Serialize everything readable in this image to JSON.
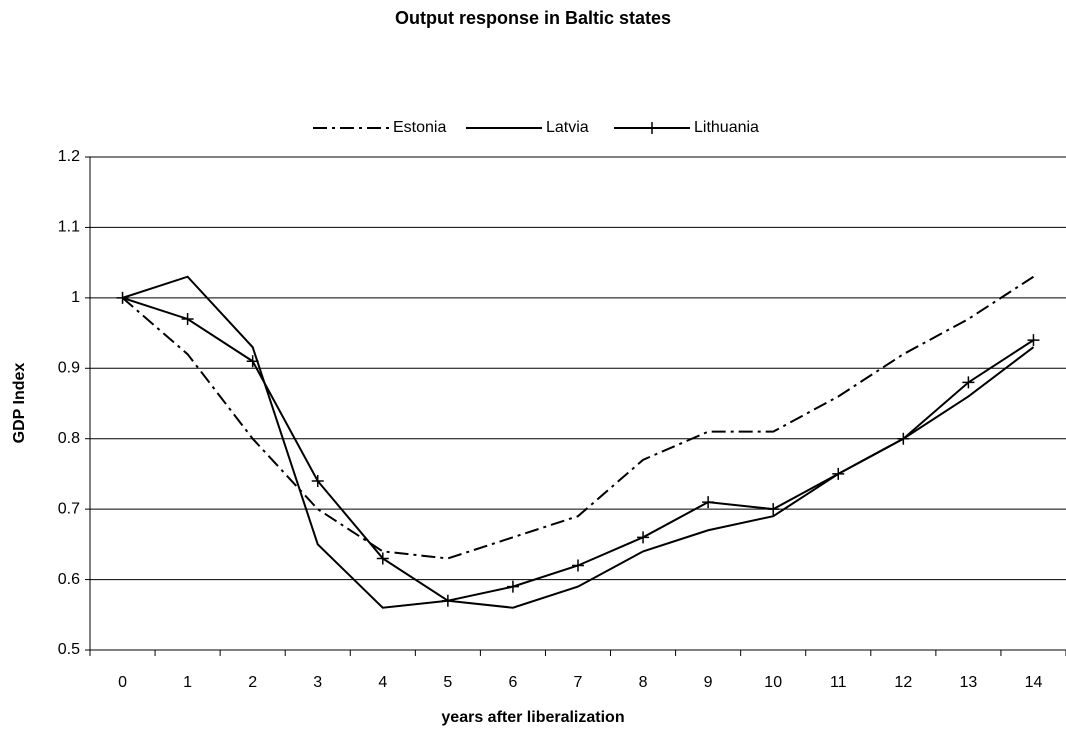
{
  "chart_data": {
    "type": "line",
    "title": "Output response in Baltic states",
    "x_label": "years after liberalization",
    "y_label": "GDP Index",
    "categories": [
      "0",
      "1",
      "2",
      "3",
      "4",
      "5",
      "6",
      "7",
      "8",
      "9",
      "10",
      "11",
      "12",
      "13",
      "14"
    ],
    "series": [
      {
        "name": "Estonia",
        "color": "#000000",
        "style": "dashdot",
        "marker": "none",
        "values": [
          1,
          0.92,
          0.8,
          0.7,
          0.64,
          0.63,
          0.66,
          0.69,
          0.77,
          0.81,
          0.81,
          0.86,
          0.92,
          0.97,
          1.03
        ]
      },
      {
        "name": "Latvia",
        "color": "#000000",
        "style": "solid",
        "marker": "none",
        "values": [
          1,
          1.03,
          0.93,
          0.65,
          0.56,
          0.57,
          0.56,
          0.59,
          0.64,
          0.67,
          0.69,
          0.75,
          0.8,
          0.86,
          0.93
        ]
      },
      {
        "name": "Lithuania",
        "color": "#000000",
        "style": "solid",
        "marker": "plus",
        "values": [
          1,
          0.97,
          0.91,
          0.74,
          0.63,
          0.57,
          0.59,
          0.62,
          0.66,
          0.71,
          0.7,
          0.75,
          0.8,
          0.88,
          0.94
        ]
      }
    ],
    "ylim": [
      0.5,
      1.2
    ],
    "yticks": [
      0.5,
      0.6,
      0.7,
      0.8,
      0.9,
      1,
      1.1,
      1.2
    ],
    "grid": true,
    "legend": "top"
  }
}
